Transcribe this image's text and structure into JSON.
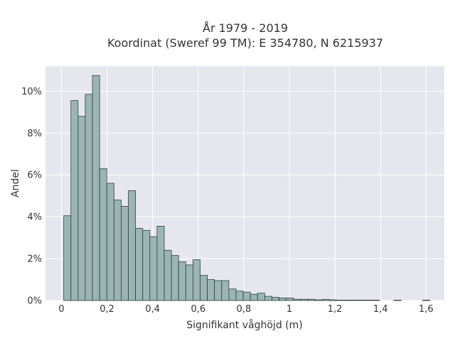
{
  "chart_data": {
    "type": "bar",
    "title_line1": "År 1979 - 2019",
    "title_line2": "Koordinat (Sweref 99 TM): E 354780, N 6215937",
    "xlabel": "Signifikant våghöjd (m)",
    "ylabel": "Andel",
    "xlim": [
      -0.07,
      1.68
    ],
    "ylim": [
      0,
      11.2
    ],
    "x_ticks": [
      {
        "value": 0,
        "label": "0"
      },
      {
        "value": 0.2,
        "label": "0,2"
      },
      {
        "value": 0.4,
        "label": "0,4"
      },
      {
        "value": 0.6,
        "label": "0,6"
      },
      {
        "value": 0.8,
        "label": "0,8"
      },
      {
        "value": 1.0,
        "label": "1"
      },
      {
        "value": 1.2,
        "label": "1,2"
      },
      {
        "value": 1.4,
        "label": "1,4"
      },
      {
        "value": 1.6,
        "label": "1,6"
      }
    ],
    "y_ticks": [
      {
        "value": 0,
        "label": "0%"
      },
      {
        "value": 2,
        "label": "2%"
      },
      {
        "value": 4,
        "label": "4%"
      },
      {
        "value": 6,
        "label": "6%"
      },
      {
        "value": 8,
        "label": "8%"
      },
      {
        "value": 10,
        "label": "10%"
      }
    ],
    "grid": true,
    "bin_start": 0.01,
    "bin_width": 0.0315,
    "values": [
      4.05,
      9.55,
      8.8,
      9.85,
      10.75,
      6.3,
      5.6,
      4.8,
      4.5,
      5.25,
      3.45,
      3.35,
      3.05,
      3.55,
      2.4,
      2.15,
      1.85,
      1.7,
      1.95,
      1.2,
      1.0,
      0.95,
      0.95,
      0.55,
      0.45,
      0.4,
      0.3,
      0.35,
      0.2,
      0.15,
      0.12,
      0.12,
      0.06,
      0.06,
      0.06,
      0.03,
      0.05,
      0.03,
      0.02,
      0.02,
      0.02,
      0.02,
      0.02,
      0.02,
      0.0,
      0.0,
      0.02,
      0.0,
      0.0,
      0.0,
      0.02
    ],
    "colors": {
      "bar_fill": "#9ab5b4",
      "bar_stroke": "#2f3f3f",
      "plot_bg": "#e6e6ee",
      "grid": "#ffffff"
    }
  }
}
